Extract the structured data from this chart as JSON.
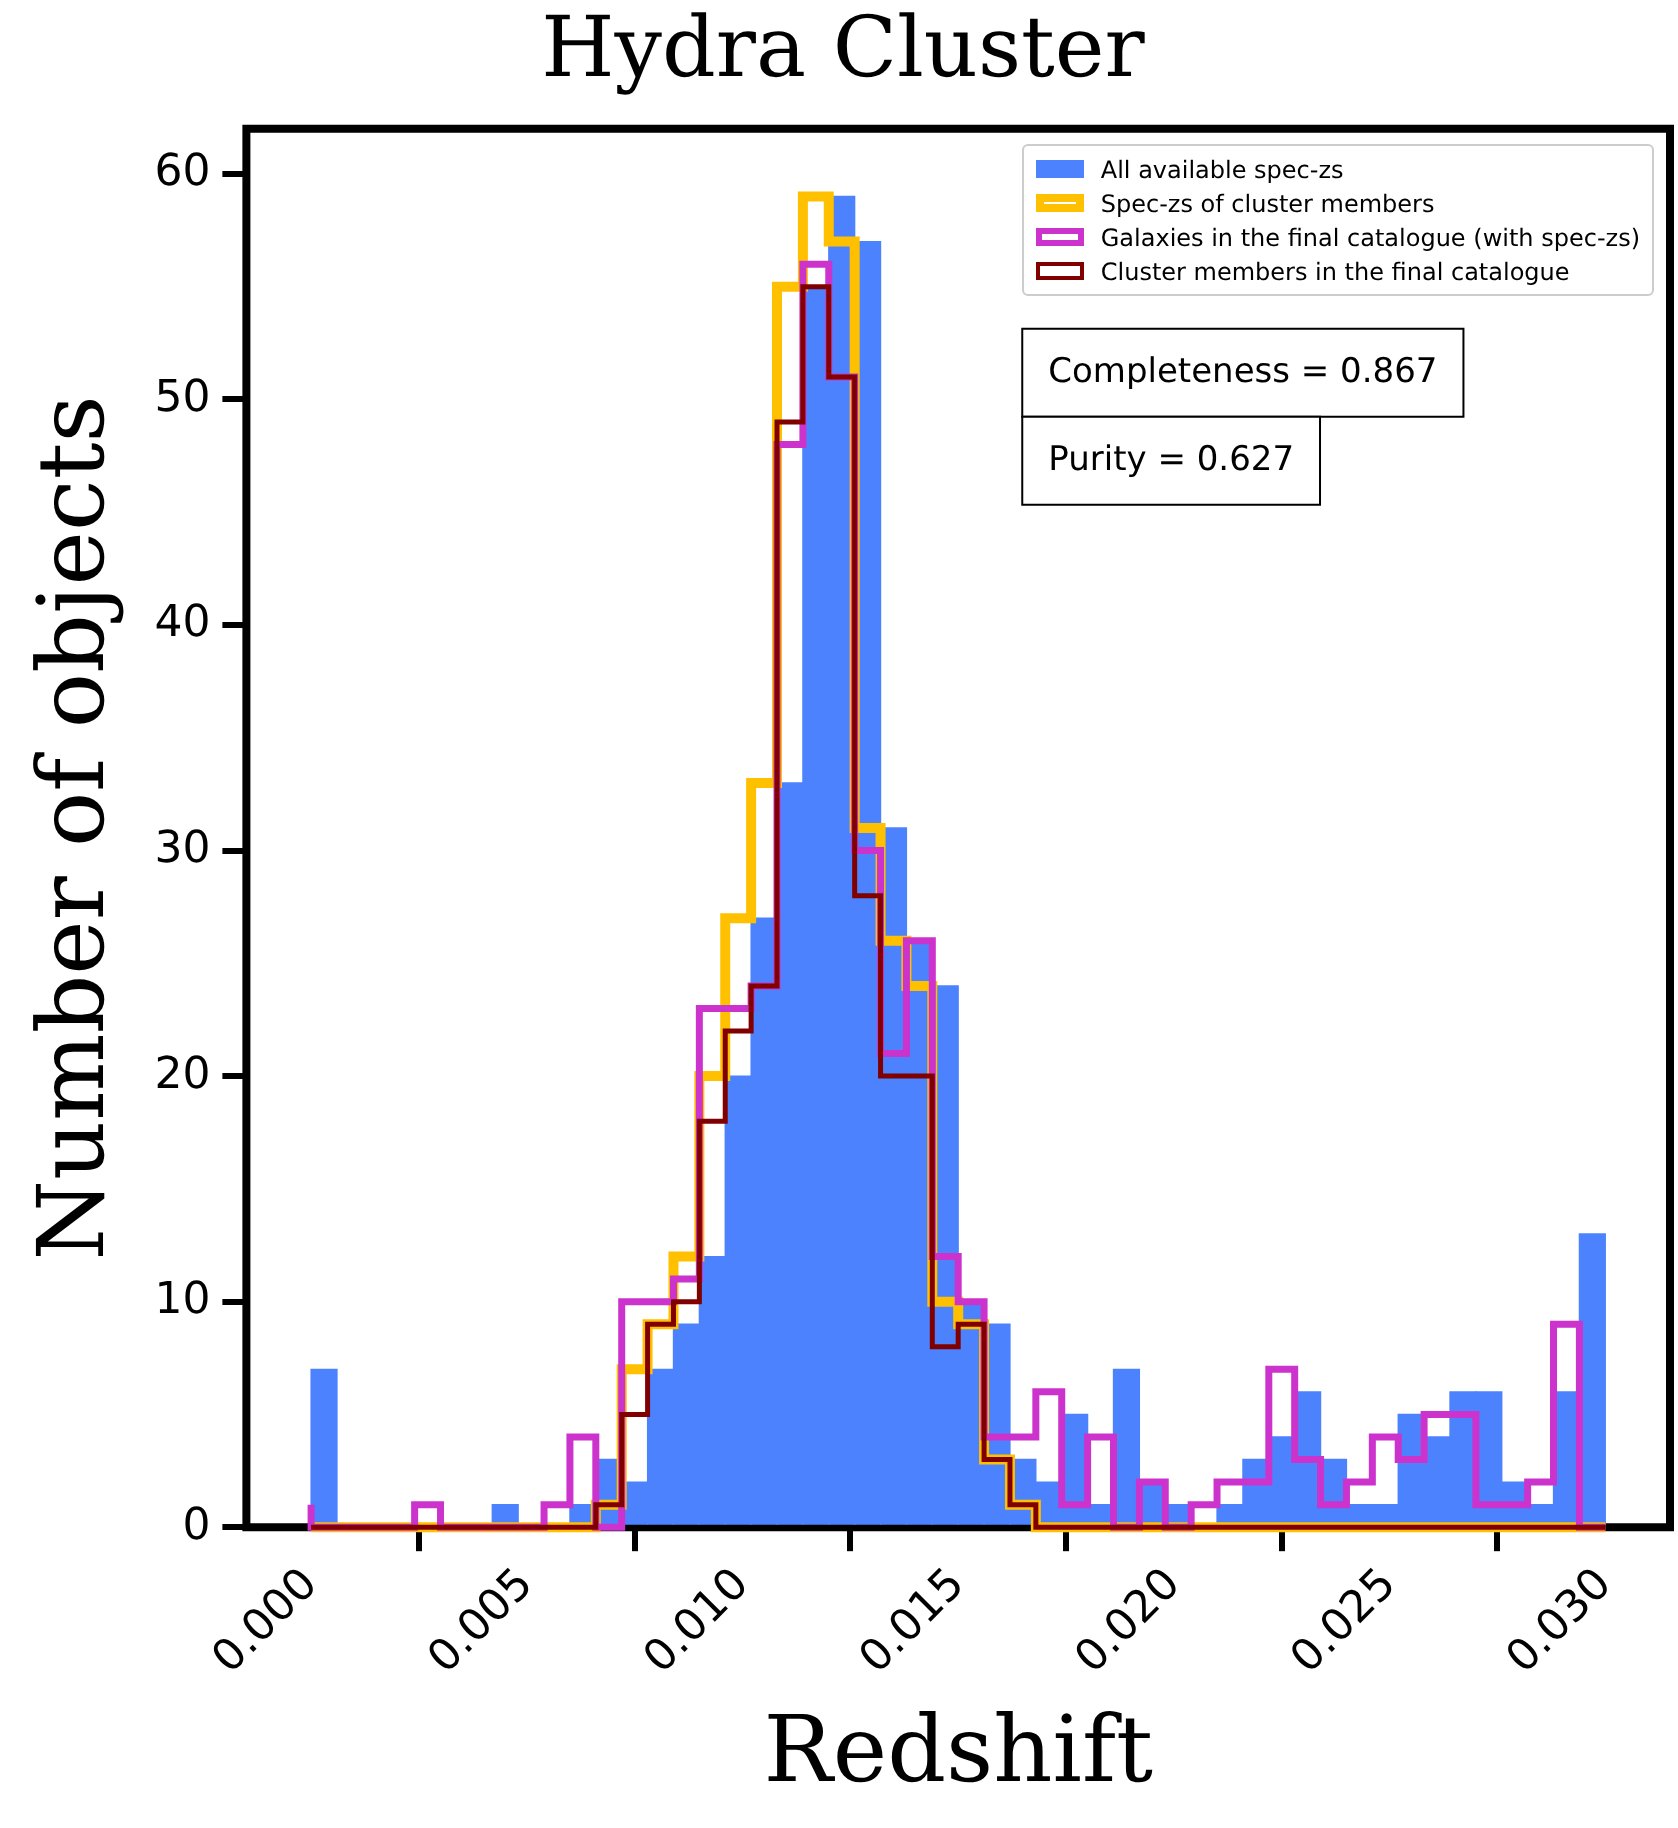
{
  "chart_data": {
    "type": "histogram",
    "title": "Hydra Cluster",
    "xlabel": "Redshift",
    "ylabel": "Number of objects",
    "bins": [
      0,
      0.0006,
      0.0012,
      0.0018,
      0.0024,
      0.003,
      0.0036,
      0.0042,
      0.0048,
      0.0054,
      0.006,
      0.0066,
      0.0072,
      0.0078,
      0.0084,
      0.009,
      0.0096,
      0.0102,
      0.0108,
      0.0114,
      0.012,
      0.0126,
      0.0132,
      0.0138,
      0.0144,
      0.015,
      0.0156,
      0.0162,
      0.0168,
      0.0174,
      0.018,
      0.0186,
      0.0192,
      0.0198,
      0.0204,
      0.021,
      0.0216,
      0.0222,
      0.0228,
      0.0234,
      0.024,
      0.0246,
      0.0252,
      0.0258,
      0.0264,
      0.027,
      0.0276,
      0.0282,
      0.0288,
      0.0294,
      0.03
    ],
    "series": [
      {
        "name": "All available spec-zs",
        "type": "histogram",
        "color": "#4d82ff",
        "values": [
          7,
          0,
          0,
          0,
          0,
          0,
          0,
          1,
          0,
          0,
          1,
          3,
          2,
          7,
          9,
          12,
          20,
          27,
          33,
          55,
          59,
          57,
          31,
          26,
          24,
          10,
          9,
          3,
          2,
          5,
          1,
          7,
          2,
          1,
          0,
          1,
          3,
          4,
          6,
          3,
          1,
          1,
          5,
          4,
          6,
          6,
          2,
          1,
          6,
          13
        ]
      },
      {
        "name": "Spec-zs of cluster members",
        "type": "step",
        "color": "#ffc000",
        "x": [
          0,
          0.0006,
          0.0012,
          0.0018,
          0.0024,
          0.003,
          0.0036,
          0.0042,
          0.0048,
          0.0054,
          0.006,
          0.0066,
          0.0072,
          0.0078,
          0.0084,
          0.009,
          0.0096,
          0.0102,
          0.0108,
          0.0114,
          0.012,
          0.0126,
          0.0132,
          0.0138,
          0.0144,
          0.015,
          0.0156,
          0.0162,
          0.0168,
          0.0174,
          0.018,
          0.0186,
          0.0192,
          0.0198,
          0.0204,
          0.021,
          0.0216,
          0.0222,
          0.0228,
          0.0234,
          0.024,
          0.0246,
          0.0252,
          0.0258,
          0.0264,
          0.027,
          0.0276,
          0.0282,
          0.0288,
          0.0294,
          0.03
        ],
        "values": [
          0,
          0,
          0,
          0,
          0,
          0,
          0,
          0,
          0,
          0,
          0,
          0,
          1,
          7,
          9,
          12,
          20,
          27,
          33,
          55,
          59,
          57,
          31,
          26,
          24,
          10,
          9,
          3,
          1,
          0,
          0,
          0,
          0,
          0,
          0,
          0,
          0,
          0,
          0,
          0,
          0,
          0,
          0,
          0,
          0,
          0,
          0,
          0,
          0,
          0,
          0
        ]
      },
      {
        "name": "Galaxies in the final catalogue (with spec-zs)",
        "type": "step",
        "color": "#cc33cc",
        "x": [
          0,
          0.0006,
          0.0012,
          0.0018,
          0.0024,
          0.003,
          0.0036,
          0.0042,
          0.0048,
          0.0054,
          0.006,
          0.0066,
          0.0072,
          0.0078,
          0.0084,
          0.009,
          0.0096,
          0.0102,
          0.0108,
          0.0114,
          0.012,
          0.0126,
          0.0132,
          0.0138,
          0.0144,
          0.015,
          0.0156,
          0.0162,
          0.0168,
          0.0174,
          0.018,
          0.0186,
          0.0192,
          0.0198,
          0.0204,
          0.021,
          0.0216,
          0.0222,
          0.0228,
          0.0234,
          0.024,
          0.0246,
          0.0252,
          0.0258,
          0.0264,
          0.027,
          0.0276,
          0.0282,
          0.0288,
          0.0294,
          0.03
        ],
        "values": [
          1,
          0,
          0,
          0,
          0,
          1,
          0,
          0,
          0,
          0,
          1,
          4,
          0,
          10,
          10,
          11,
          23,
          23,
          24,
          48,
          56,
          51,
          30,
          21,
          26,
          12,
          10,
          4,
          4,
          6,
          1,
          4,
          0,
          2,
          0,
          1,
          2,
          2,
          7,
          3,
          1,
          2,
          4,
          3,
          5,
          5,
          1,
          1,
          2,
          9,
          0
        ]
      },
      {
        "name": "Cluster members in the final catalogue",
        "type": "step",
        "color": "#800000",
        "x": [
          0,
          0.0006,
          0.0012,
          0.0018,
          0.0024,
          0.003,
          0.0036,
          0.0042,
          0.0048,
          0.0054,
          0.006,
          0.0066,
          0.0072,
          0.0078,
          0.0084,
          0.009,
          0.0096,
          0.0102,
          0.0108,
          0.0114,
          0.012,
          0.0126,
          0.0132,
          0.0138,
          0.0144,
          0.015,
          0.0156,
          0.0162,
          0.0168,
          0.0174,
          0.018,
          0.0186,
          0.0192,
          0.0198,
          0.0204,
          0.021,
          0.0216,
          0.0222,
          0.0228,
          0.0234,
          0.024,
          0.0246,
          0.0252,
          0.0258,
          0.0264,
          0.027,
          0.0276,
          0.0282,
          0.0288,
          0.0294,
          0.03
        ],
        "values": [
          0,
          0,
          0,
          0,
          0,
          0,
          0,
          0,
          0,
          0,
          0,
          0,
          1,
          5,
          9,
          10,
          18,
          22,
          24,
          49,
          55,
          51,
          28,
          20,
          20,
          8,
          9,
          3,
          1,
          0,
          0,
          0,
          0,
          0,
          0,
          0,
          0,
          0,
          0,
          0,
          0,
          0,
          0,
          0,
          0,
          0,
          0,
          0,
          0,
          0,
          0
        ]
      }
    ],
    "xlim": [
      -0.0015,
      0.0315
    ],
    "ylim": [
      0,
      62
    ],
    "xticks": [
      {
        "value": 0,
        "label": "0.000"
      },
      {
        "value": 0.005,
        "label": "0.005"
      },
      {
        "value": 0.01,
        "label": "0.010"
      },
      {
        "value": 0.015,
        "label": "0.015"
      },
      {
        "value": 0.02,
        "label": "0.020"
      },
      {
        "value": 0.025,
        "label": "0.025"
      },
      {
        "value": 0.03,
        "label": "0.030"
      }
    ],
    "yticks": [
      0,
      10,
      20,
      30,
      40,
      50,
      60
    ],
    "legend": "top right",
    "grid": false,
    "annotations": [
      "Completeness = 0.867",
      "Purity = 0.627"
    ]
  }
}
